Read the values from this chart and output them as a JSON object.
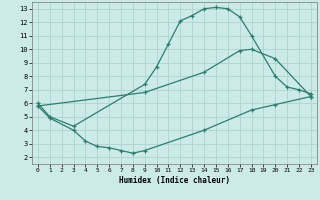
{
  "xlabel": "Humidex (Indice chaleur)",
  "bg_color": "#cceae7",
  "grid_color": "#aed4d0",
  "line_color": "#2e7d6e",
  "xlim": [
    -0.5,
    23.5
  ],
  "ylim": [
    1.5,
    13.5
  ],
  "xticks": [
    0,
    1,
    2,
    3,
    4,
    5,
    6,
    7,
    8,
    9,
    10,
    11,
    12,
    13,
    14,
    15,
    16,
    17,
    18,
    19,
    20,
    21,
    22,
    23
  ],
  "yticks": [
    2,
    3,
    4,
    5,
    6,
    7,
    8,
    9,
    10,
    11,
    12,
    13
  ],
  "curve1_x": [
    0,
    1,
    3,
    9,
    10,
    11,
    12,
    13,
    14,
    15,
    16,
    17,
    18,
    20,
    21,
    22,
    23
  ],
  "curve1_y": [
    6.0,
    5.0,
    4.3,
    7.4,
    8.7,
    10.4,
    12.1,
    12.5,
    13.0,
    13.1,
    13.0,
    12.4,
    11.0,
    8.0,
    7.2,
    7.0,
    6.7
  ],
  "curve2_x": [
    0,
    9,
    14,
    17,
    18,
    20,
    23
  ],
  "curve2_y": [
    5.8,
    6.8,
    8.3,
    9.9,
    10.0,
    9.3,
    6.5
  ],
  "curve3_x": [
    0,
    1,
    3,
    4,
    5,
    6,
    7,
    8,
    9,
    14,
    18,
    20,
    23
  ],
  "curve3_y": [
    5.8,
    4.9,
    4.0,
    3.2,
    2.8,
    2.7,
    2.5,
    2.3,
    2.5,
    4.0,
    5.5,
    5.9,
    6.5
  ]
}
